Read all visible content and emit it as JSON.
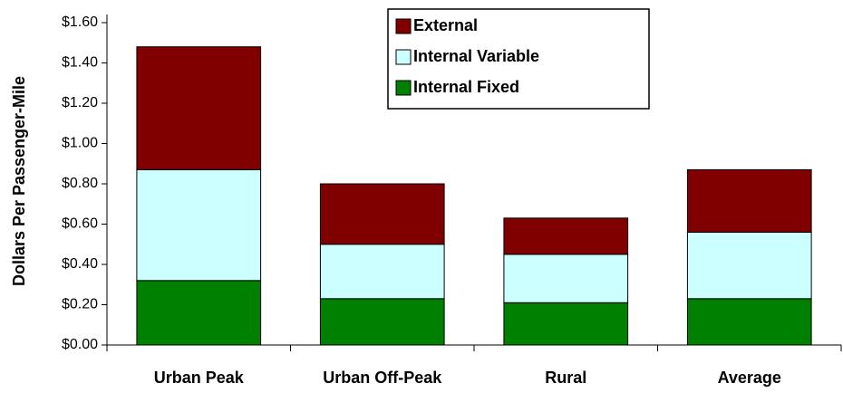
{
  "chart_data": {
    "type": "stacked_bar",
    "y_label": "Dollars Per Passenger-Mile",
    "categories": [
      "Urban Peak",
      "Urban Off-Peak",
      "Rural",
      "Average"
    ],
    "series": [
      {
        "name": "Internal Fixed",
        "color": "#008000",
        "values": [
          0.32,
          0.23,
          0.21,
          0.23
        ]
      },
      {
        "name": "Internal Variable",
        "color": "#ccffff",
        "values": [
          0.55,
          0.27,
          0.24,
          0.33
        ]
      },
      {
        "name": "External",
        "color": "#800000",
        "values": [
          0.61,
          0.3,
          0.18,
          0.31
        ]
      }
    ],
    "ylim": [
      0,
      1.6
    ],
    "yticks": [
      {
        "value": 0,
        "label": "$0.00"
      },
      {
        "value": 0.2,
        "label": "$0.20"
      },
      {
        "value": 0.4,
        "label": "$0.40"
      },
      {
        "value": 0.6,
        "label": "$0.60"
      },
      {
        "value": 0.8,
        "label": "$0.80"
      },
      {
        "value": 1.0,
        "label": "$1.00"
      },
      {
        "value": 1.2,
        "label": "$1.20"
      },
      {
        "value": 1.4,
        "label": "$1.40"
      },
      {
        "value": 1.6,
        "label": "$1.60"
      }
    ],
    "legend": "top-right"
  }
}
